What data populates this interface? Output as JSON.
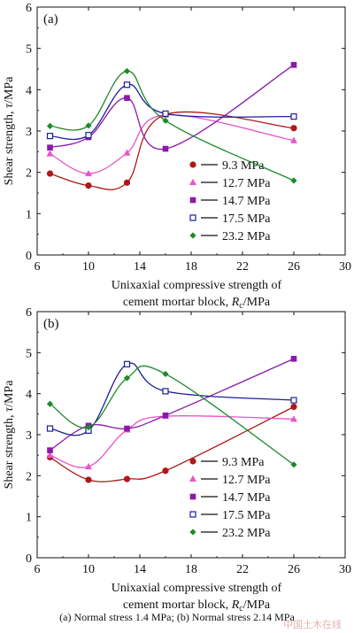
{
  "caption": "(a) Normal  stress 1.4 MPa; (b) Normal stress 2.14 MPa",
  "watermark": "中国土木在线",
  "chart_data": [
    {
      "type": "line",
      "panel_label": "(a)",
      "xlabel_line1": "Unixaxial compressive strength of",
      "xlabel_line2_prefix": "cement mortar block, ",
      "xlabel_symbol": "R",
      "xlabel_sub": "c",
      "xlabel_unit": "/MPa",
      "ylabel_prefix": "Shear strength, ",
      "ylabel_symbol": "τ",
      "ylabel_unit": "/MPa",
      "xlim": [
        6,
        30
      ],
      "ylim": [
        0,
        6
      ],
      "xticks": [
        6,
        10,
        14,
        18,
        22,
        26,
        30
      ],
      "yticks": [
        0,
        1,
        2,
        3,
        4,
        5,
        6
      ],
      "legend_position": "bottom-right",
      "series": [
        {
          "name": "9.3 MPa",
          "color": "#b01818",
          "marker": "circle",
          "x": [
            7,
            10,
            13,
            16,
            26
          ],
          "y": [
            1.97,
            1.68,
            1.75,
            3.4,
            3.07
          ]
        },
        {
          "name": "12.7 MPa",
          "color": "#e855c8",
          "marker": "triangle",
          "x": [
            7,
            10,
            13,
            16,
            26
          ],
          "y": [
            2.45,
            1.97,
            2.47,
            3.39,
            2.77
          ]
        },
        {
          "name": "14.7 MPa",
          "color": "#8a1aa8",
          "marker": "square",
          "x": [
            7,
            10,
            13,
            16,
            26
          ],
          "y": [
            2.6,
            2.85,
            3.8,
            2.57,
            4.6
          ]
        },
        {
          "name": "17.5 MPa",
          "color": "#1c1f9a",
          "marker": "square-open",
          "x": [
            7,
            10,
            13,
            16,
            26
          ],
          "y": [
            2.88,
            2.9,
            4.12,
            3.42,
            3.35
          ]
        },
        {
          "name": "23.2 MPa",
          "color": "#1d8a2a",
          "marker": "diamond",
          "x": [
            7,
            10,
            13,
            16,
            26
          ],
          "y": [
            3.12,
            3.13,
            4.45,
            3.25,
            1.8
          ]
        }
      ]
    },
    {
      "type": "line",
      "panel_label": "(b)",
      "xlabel_line1": "Unixaxial compressive strength of",
      "xlabel_line2_prefix": "cement mortar block, ",
      "xlabel_symbol": "R",
      "xlabel_sub": "c",
      "xlabel_unit": "/MPa",
      "ylabel_prefix": "Shear strength, ",
      "ylabel_symbol": "τ",
      "ylabel_unit": "/MPa",
      "xlim": [
        6,
        30
      ],
      "ylim": [
        0,
        6
      ],
      "xticks": [
        6,
        10,
        14,
        18,
        22,
        26,
        30
      ],
      "yticks": [
        0,
        1,
        2,
        3,
        4,
        5,
        6
      ],
      "legend_position": "bottom-right",
      "series": [
        {
          "name": "9.3 MPa",
          "color": "#b01818",
          "marker": "circle",
          "x": [
            7,
            10,
            13,
            16,
            26
          ],
          "y": [
            2.45,
            1.9,
            1.92,
            2.12,
            3.68
          ]
        },
        {
          "name": "12.7 MPa",
          "color": "#e855c8",
          "marker": "triangle",
          "x": [
            7,
            10,
            13,
            16,
            26
          ],
          "y": [
            2.5,
            2.22,
            3.12,
            3.45,
            3.38
          ]
        },
        {
          "name": "14.7 MPa",
          "color": "#8a1aa8",
          "marker": "square",
          "x": [
            7,
            10,
            13,
            16,
            26
          ],
          "y": [
            2.62,
            3.22,
            3.15,
            3.47,
            4.85
          ]
        },
        {
          "name": "17.5 MPa",
          "color": "#1c1f9a",
          "marker": "square-open",
          "x": [
            7,
            10,
            13,
            16,
            26
          ],
          "y": [
            3.15,
            3.1,
            4.72,
            4.06,
            3.84
          ]
        },
        {
          "name": "23.2 MPa",
          "color": "#1d8a2a",
          "marker": "diamond",
          "x": [
            7,
            10,
            13,
            16,
            26
          ],
          "y": [
            3.75,
            3.18,
            4.38,
            4.48,
            2.27
          ]
        }
      ]
    }
  ]
}
